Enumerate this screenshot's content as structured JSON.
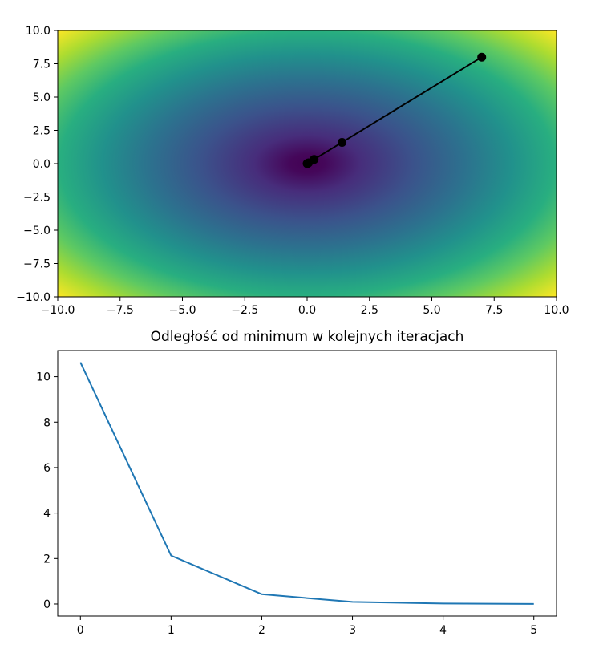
{
  "chart_data": [
    {
      "type": "heatmap",
      "title": "",
      "xlabel": "",
      "ylabel": "",
      "xlim": [
        -10,
        10
      ],
      "ylim": [
        -10,
        10
      ],
      "colormap": "viridis",
      "x_ticks": [
        "−10.0",
        "−7.5",
        "−5.0",
        "−2.5",
        "0.0",
        "2.5",
        "5.0",
        "7.5",
        "10.0"
      ],
      "y_ticks": [
        "10.0",
        "7.5",
        "5.0",
        "2.5",
        "0.0",
        "−2.5",
        "−5.0",
        "−7.5",
        "−10.0"
      ],
      "path": {
        "color": "#000000",
        "points": [
          {
            "x": 7.0,
            "y": 8.0
          },
          {
            "x": 1.4,
            "y": 1.6
          },
          {
            "x": 0.28,
            "y": 0.32
          },
          {
            "x": 0.056,
            "y": 0.064
          },
          {
            "x": 0.011,
            "y": 0.013
          },
          {
            "x": 0.002,
            "y": 0.003
          }
        ]
      },
      "grid": false
    },
    {
      "type": "line",
      "title": "Odległość od minimum w kolejnych iteracjach",
      "xlabel": "",
      "ylabel": "",
      "xlim": [
        -0.25,
        5.25
      ],
      "ylim": [
        -0.53,
        11.15
      ],
      "x_ticks": [
        "0",
        "1",
        "2",
        "3",
        "4",
        "5"
      ],
      "y_ticks": [
        "10",
        "8",
        "6",
        "4",
        "2",
        "0"
      ],
      "series": [
        {
          "color": "#1f77b4",
          "x": [
            0,
            1,
            2,
            3,
            4,
            5
          ],
          "values": [
            10.63,
            2.13,
            0.43,
            0.09,
            0.02,
            0.003
          ]
        }
      ],
      "grid": false
    }
  ]
}
